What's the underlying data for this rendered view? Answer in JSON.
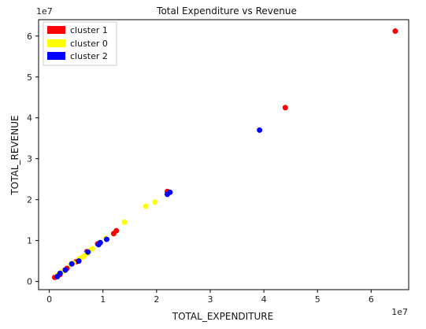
{
  "chart_data": {
    "type": "scatter",
    "title": "Total Expenditure vs Revenue",
    "xlabel": "TOTAL_EXPENDITURE",
    "ylabel": "TOTAL_REVENUE",
    "x_offset_label": "1e7",
    "y_offset_label": "1e7",
    "xlim": [
      -0.2,
      6.7
    ],
    "ylim": [
      -0.2,
      6.4
    ],
    "x_ticks": [
      0,
      1,
      2,
      3,
      4,
      5,
      6
    ],
    "x_tick_labels": [
      "0",
      "1",
      "2",
      "3",
      "4",
      "5",
      "6"
    ],
    "y_ticks": [
      0,
      1,
      2,
      3,
      4,
      5,
      6
    ],
    "y_tick_labels": [
      "0",
      "1",
      "2",
      "3",
      "4",
      "5",
      "6"
    ],
    "grid": false,
    "legend_placement": "top-left",
    "series": [
      {
        "name": "cluster 1",
        "color": "#ff0000",
        "points": [
          [
            0.1,
            0.1
          ],
          [
            0.2,
            0.17
          ],
          [
            0.28,
            0.27
          ],
          [
            0.33,
            0.32
          ],
          [
            0.5,
            0.48
          ],
          [
            0.7,
            0.73
          ],
          [
            0.9,
            0.92
          ],
          [
            1.2,
            1.17
          ],
          [
            1.25,
            1.24
          ],
          [
            2.2,
            2.2
          ],
          [
            4.4,
            4.25
          ],
          [
            6.45,
            6.12
          ]
        ]
      },
      {
        "name": "cluster 0",
        "color": "#ffff00",
        "points": [
          [
            0.15,
            0.15
          ],
          [
            0.25,
            0.25
          ],
          [
            0.4,
            0.42
          ],
          [
            0.45,
            0.45
          ],
          [
            0.55,
            0.55
          ],
          [
            0.6,
            0.58
          ],
          [
            0.65,
            0.62
          ],
          [
            0.7,
            0.68
          ],
          [
            0.75,
            0.75
          ],
          [
            0.8,
            0.8
          ],
          [
            0.95,
            0.95
          ],
          [
            1.05,
            1.05
          ],
          [
            1.4,
            1.45
          ],
          [
            1.8,
            1.84
          ],
          [
            1.97,
            1.94
          ]
        ]
      },
      {
        "name": "cluster 2",
        "color": "#0000ff",
        "points": [
          [
            0.15,
            0.12
          ],
          [
            0.2,
            0.2
          ],
          [
            0.3,
            0.28
          ],
          [
            0.42,
            0.43
          ],
          [
            0.55,
            0.5
          ],
          [
            0.72,
            0.72
          ],
          [
            0.92,
            0.9
          ],
          [
            0.95,
            0.95
          ],
          [
            1.07,
            1.03
          ],
          [
            2.2,
            2.13
          ],
          [
            2.25,
            2.18
          ],
          [
            3.92,
            3.7
          ]
        ]
      }
    ]
  }
}
